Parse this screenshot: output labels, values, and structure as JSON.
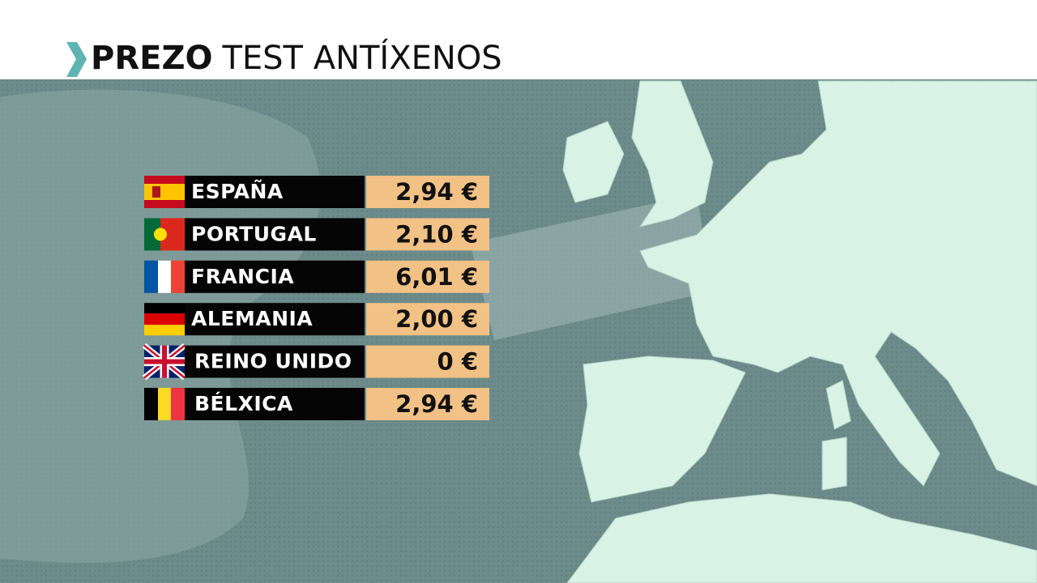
{
  "title": [
    "PREZO",
    "TEST ANTÍXENOS"
  ],
  "table": {
    "rows": [
      {
        "country": "ESPAÑA",
        "price": "2,94 €"
      },
      {
        "country": "PORTUGAL",
        "price": "2,10 €"
      },
      {
        "country": "FRANCIA",
        "price": "6,01 €"
      },
      {
        "country": "ALEMANIA",
        "price": "2,00 €"
      },
      {
        "country": "REINO UNIDO",
        "price": "0 €"
      },
      {
        "country": "BÉLXICA",
        "price": "2,94 €"
      }
    ]
  }
}
